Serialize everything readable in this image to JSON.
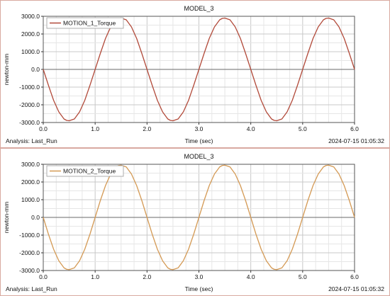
{
  "chart_data": [
    {
      "type": "line",
      "title": "MODEL_3",
      "xlabel": "Time (sec)",
      "ylabel": "newton-mm",
      "xlim": [
        0.0,
        6.0
      ],
      "ylim": [
        -3000.0,
        3000.0
      ],
      "xticks": [
        "0.0",
        "1.0",
        "2.0",
        "3.0",
        "4.0",
        "5.0",
        "6.0"
      ],
      "yticks": [
        "3000.0",
        "2000.0",
        "1000.0",
        "0.0",
        "-1000.0",
        "-2000.0",
        "-3000.0"
      ],
      "grid": true,
      "legend_position": "top-left",
      "footer_left": "Analysis:  Last_Run",
      "footer_right": "2024-07-15 01:05:32",
      "series": [
        {
          "name": "MOTION_1_Torque",
          "color": "#b24a3a",
          "x": [
            0.0,
            0.1,
            0.2,
            0.3,
            0.4,
            0.45,
            0.5,
            0.6,
            0.7,
            0.8,
            0.9,
            1.0,
            1.1,
            1.2,
            1.3,
            1.4,
            1.45,
            1.5,
            1.6,
            1.7,
            1.8,
            1.9,
            2.0,
            2.1,
            2.2,
            2.3,
            2.4,
            2.45,
            2.5,
            2.6,
            2.7,
            2.8,
            2.9,
            3.0,
            3.1,
            3.2,
            3.3,
            3.4,
            3.45,
            3.5,
            3.6,
            3.7,
            3.8,
            3.9,
            4.0,
            4.1,
            4.2,
            4.3,
            4.4,
            4.45,
            4.5,
            4.6,
            4.7,
            4.8,
            4.9,
            5.0,
            5.1,
            5.2,
            5.3,
            5.4,
            5.45,
            5.5,
            5.6,
            5.7,
            5.8,
            5.9,
            6.0
          ],
          "values": [
            0,
            -900,
            -1750,
            -2400,
            -2800,
            -2880,
            -2900,
            -2800,
            -2400,
            -1750,
            -900,
            0,
            900,
            1750,
            2400,
            2800,
            2880,
            2900,
            2800,
            2400,
            1750,
            900,
            0,
            -900,
            -1750,
            -2400,
            -2800,
            -2880,
            -2900,
            -2800,
            -2400,
            -1750,
            -900,
            0,
            900,
            1750,
            2400,
            2800,
            2880,
            2900,
            2800,
            2400,
            1750,
            900,
            0,
            -900,
            -1750,
            -2400,
            -2800,
            -2880,
            -2900,
            -2800,
            -2400,
            -1750,
            -900,
            0,
            900,
            1750,
            2400,
            2800,
            2880,
            2900,
            2800,
            2400,
            1750,
            900,
            0
          ]
        }
      ]
    },
    {
      "type": "line",
      "title": "MODEL_3",
      "xlabel": "Time (sec)",
      "ylabel": "newton-mm",
      "xlim": [
        0.0,
        6.0
      ],
      "ylim": [
        -3000.0,
        3000.0
      ],
      "xticks": [
        "0.0",
        "1.0",
        "2.0",
        "3.0",
        "4.0",
        "5.0",
        "6.0"
      ],
      "yticks": [
        "3000.0",
        "2000.0",
        "1000.0",
        "0.0",
        "-1000.0",
        "-2000.0",
        "-3000.0"
      ],
      "grid": true,
      "legend_position": "top-left",
      "footer_left": "Analysis:  Last_Run",
      "footer_right": "2024-07-15 01:05:32",
      "series": [
        {
          "name": "MOTION_2_Torque",
          "color": "#d49a55",
          "x": [
            0.0,
            0.1,
            0.2,
            0.3,
            0.4,
            0.45,
            0.5,
            0.6,
            0.7,
            0.8,
            0.9,
            1.0,
            1.1,
            1.2,
            1.3,
            1.4,
            1.45,
            1.5,
            1.6,
            1.7,
            1.8,
            1.9,
            2.0,
            2.1,
            2.2,
            2.3,
            2.4,
            2.45,
            2.5,
            2.6,
            2.7,
            2.8,
            2.9,
            3.0,
            3.1,
            3.2,
            3.3,
            3.4,
            3.45,
            3.5,
            3.6,
            3.7,
            3.8,
            3.9,
            4.0,
            4.1,
            4.2,
            4.3,
            4.4,
            4.45,
            4.5,
            4.6,
            4.7,
            4.8,
            4.9,
            5.0,
            5.1,
            5.2,
            5.3,
            5.4,
            5.45,
            5.5,
            5.6,
            5.7,
            5.8,
            5.9,
            6.0
          ],
          "values": [
            0,
            -950,
            -1800,
            -2450,
            -2850,
            -2930,
            -2950,
            -2850,
            -2450,
            -1800,
            -950,
            0,
            950,
            1800,
            2450,
            2850,
            2930,
            2950,
            2850,
            2450,
            1800,
            950,
            0,
            -950,
            -1800,
            -2450,
            -2850,
            -2930,
            -2950,
            -2850,
            -2450,
            -1800,
            -950,
            0,
            950,
            1800,
            2450,
            2850,
            2930,
            2950,
            2850,
            2450,
            1800,
            950,
            0,
            -950,
            -1800,
            -2450,
            -2850,
            -2930,
            -2950,
            -2850,
            -2450,
            -1800,
            -950,
            0,
            950,
            1800,
            2450,
            2850,
            2930,
            2950,
            2850,
            2450,
            1800,
            950,
            0
          ]
        }
      ]
    }
  ]
}
